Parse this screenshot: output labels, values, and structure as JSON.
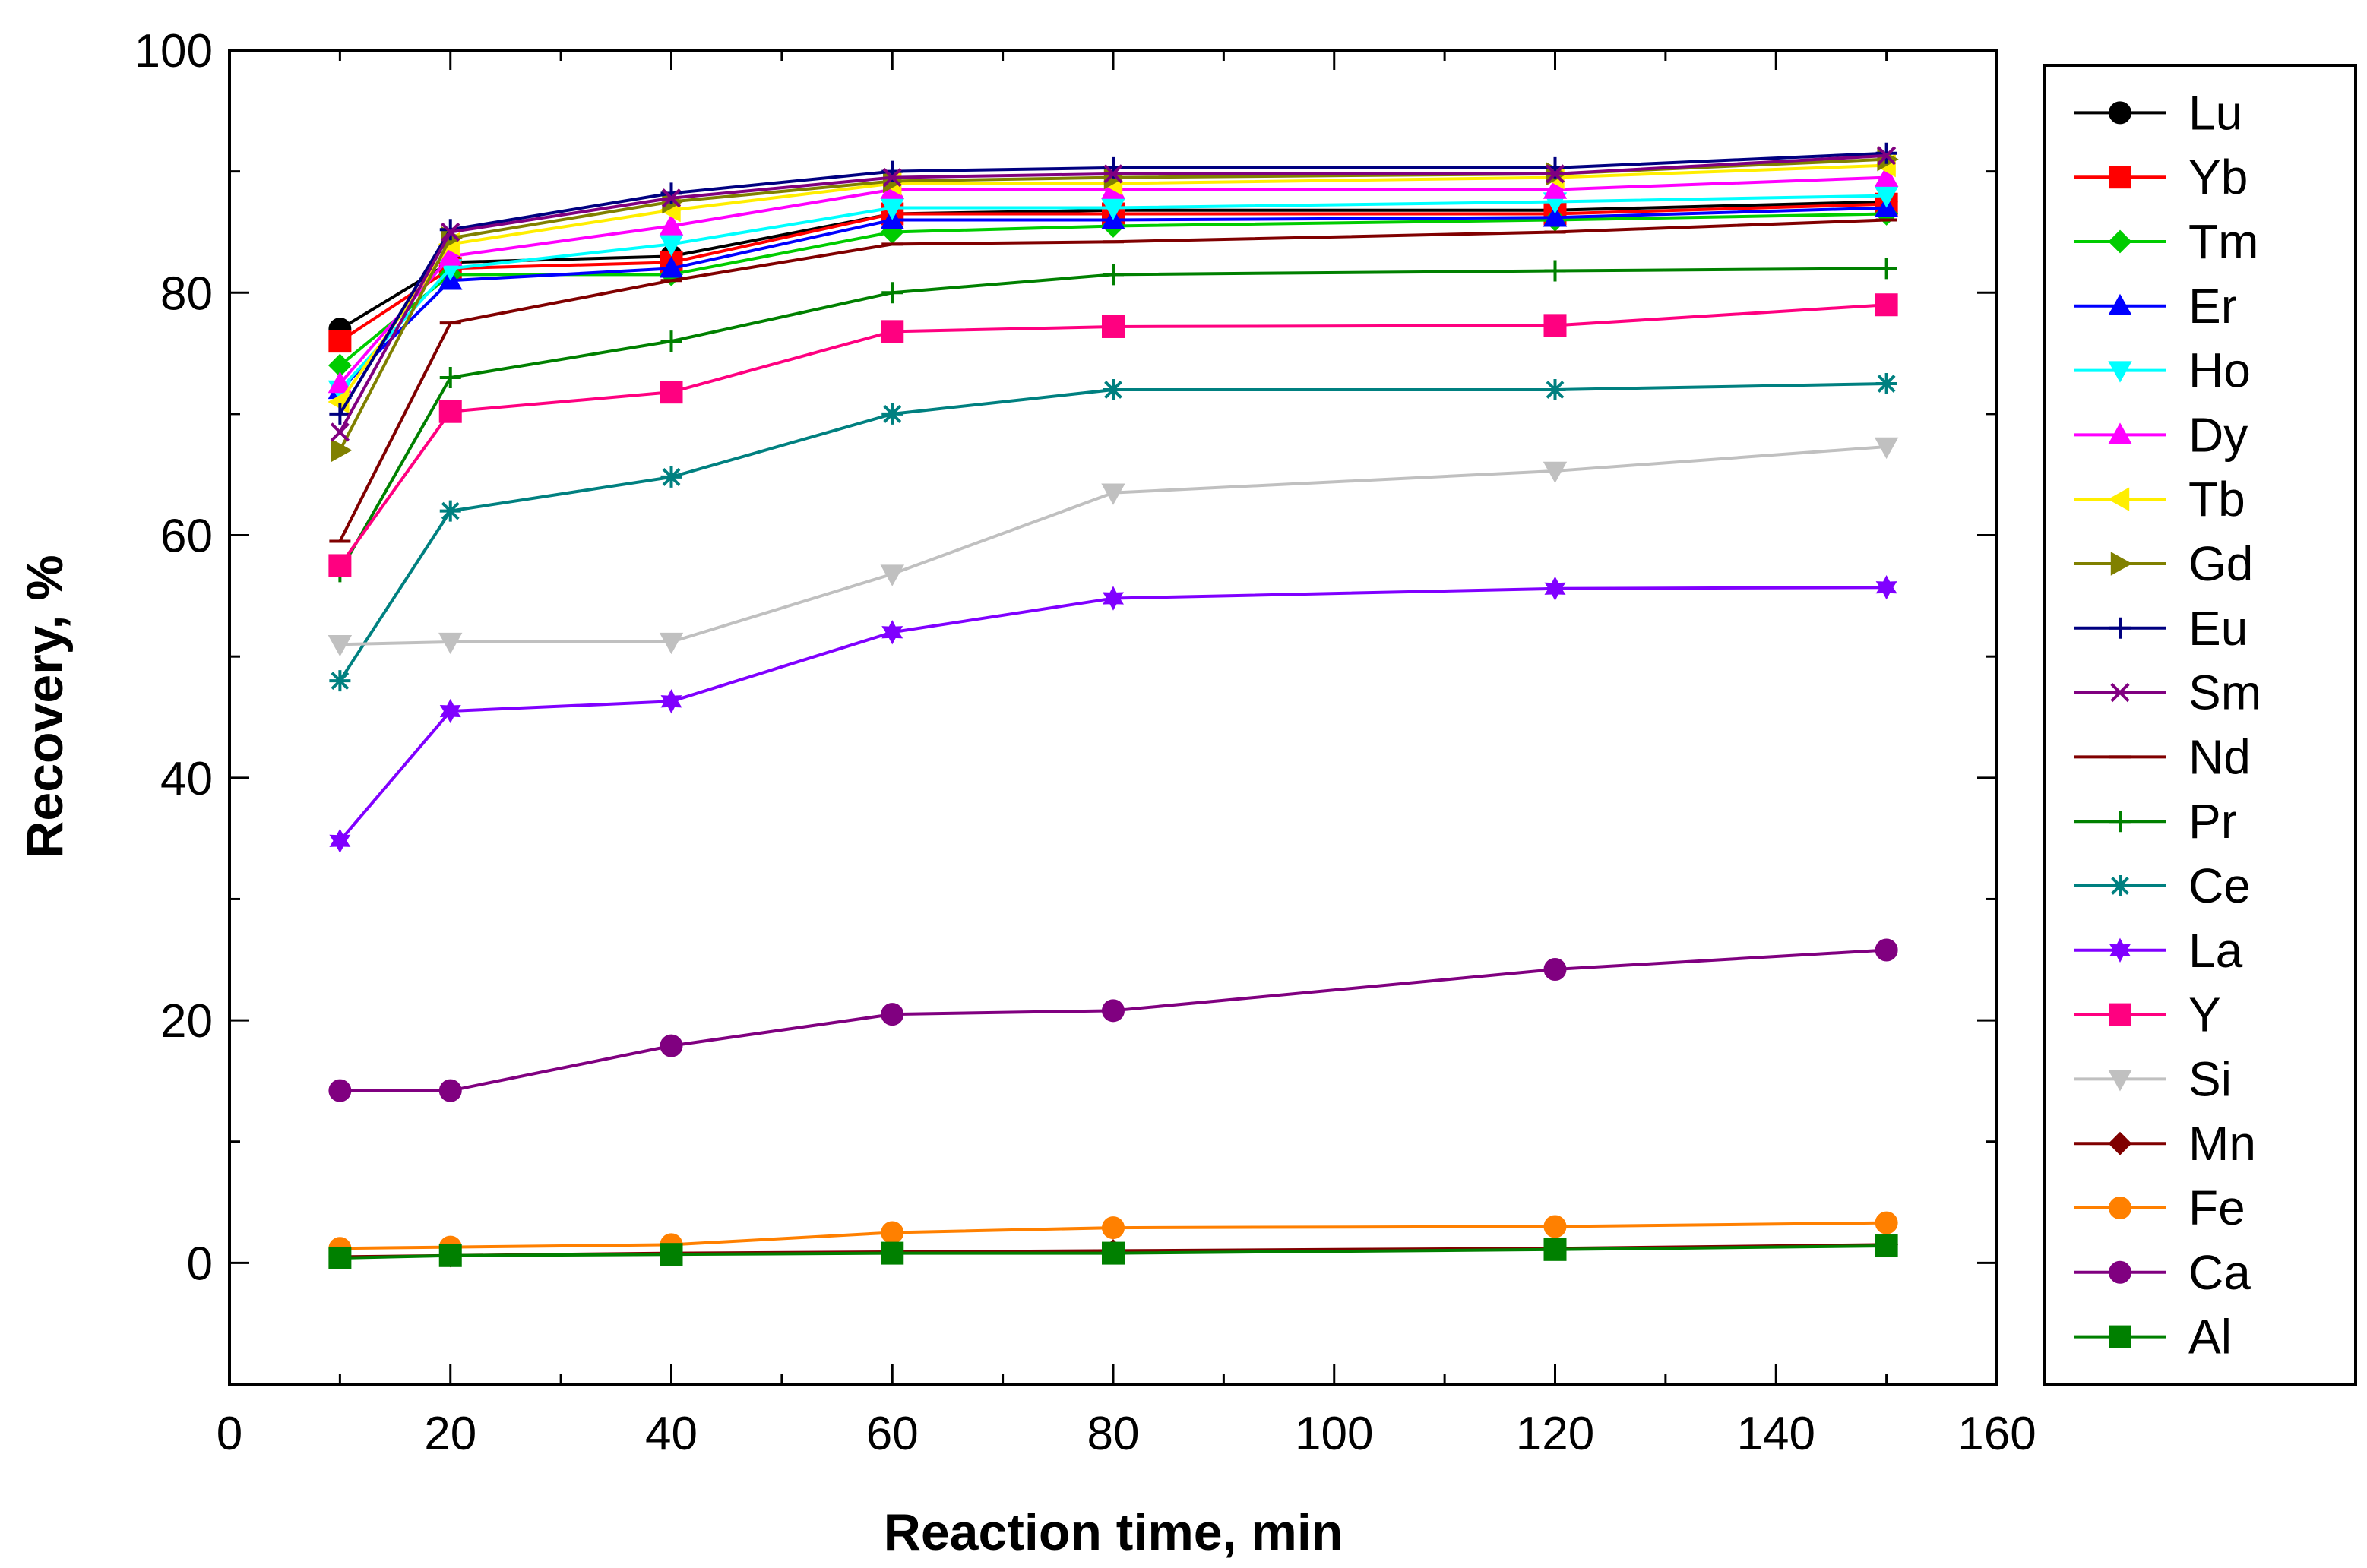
{
  "chart_data": {
    "type": "line",
    "title": "",
    "xlabel": "Reaction time, min",
    "ylabel": "Recovery, %",
    "xlim": [
      0,
      160
    ],
    "ylim": [
      -10,
      100
    ],
    "xticks": [
      0,
      20,
      40,
      60,
      80,
      100,
      120,
      140,
      160
    ],
    "yticks": [
      0,
      20,
      40,
      60,
      80,
      100
    ],
    "legend_position": "right-outside",
    "x": [
      10,
      20,
      40,
      60,
      80,
      120,
      150
    ],
    "series": [
      {
        "name": "Lu",
        "color": "#000000",
        "marker": "circle",
        "values": [
          77.0,
          82.5,
          83.0,
          86.5,
          86.8,
          86.8,
          87.5
        ]
      },
      {
        "name": "Yb",
        "color": "#ff0000",
        "marker": "square",
        "values": [
          76.0,
          82.0,
          82.5,
          86.5,
          86.5,
          86.5,
          87.3
        ]
      },
      {
        "name": "Tm",
        "color": "#00cc00",
        "marker": "diamond",
        "values": [
          74.0,
          81.5,
          81.5,
          85.0,
          85.5,
          86.0,
          86.5
        ]
      },
      {
        "name": "Er",
        "color": "#0000ff",
        "marker": "triangle-up",
        "values": [
          72.0,
          81.0,
          82.0,
          86.0,
          86.0,
          86.2,
          87.0
        ]
      },
      {
        "name": "Ho",
        "color": "#00ffff",
        "marker": "triangle-down",
        "values": [
          72.0,
          82.0,
          84.0,
          87.0,
          87.0,
          87.5,
          88.0
        ]
      },
      {
        "name": "Dy",
        "color": "#ff00ff",
        "marker": "triangle-up",
        "values": [
          72.5,
          83.0,
          85.5,
          88.5,
          88.5,
          88.5,
          89.5
        ]
      },
      {
        "name": "Tb",
        "color": "#ffee00",
        "marker": "triangle-left",
        "values": [
          71.0,
          84.0,
          86.8,
          89.0,
          89.0,
          89.5,
          90.5
        ]
      },
      {
        "name": "Gd",
        "color": "#808000",
        "marker": "triangle-right",
        "values": [
          67.0,
          84.5,
          87.5,
          89.2,
          89.5,
          89.8,
          91.0
        ]
      },
      {
        "name": "Eu",
        "color": "#000080",
        "marker": "plus",
        "values": [
          70.0,
          85.2,
          88.2,
          90.0,
          90.3,
          90.3,
          91.5
        ]
      },
      {
        "name": "Sm",
        "color": "#800080",
        "marker": "x",
        "values": [
          68.5,
          85.0,
          87.8,
          89.5,
          89.8,
          89.8,
          91.3
        ]
      },
      {
        "name": "Nd",
        "color": "#800000",
        "marker": "hbar",
        "values": [
          59.5,
          77.5,
          81.0,
          84.0,
          84.2,
          85.0,
          86.0
        ]
      },
      {
        "name": "Pr",
        "color": "#008000",
        "marker": "plus",
        "values": [
          57.0,
          73.0,
          76.0,
          80.0,
          81.5,
          81.8,
          82.0
        ]
      },
      {
        "name": "Ce",
        "color": "#008080",
        "marker": "asterisk",
        "values": [
          48.0,
          62.0,
          64.8,
          70.0,
          72.0,
          72.0,
          72.5
        ]
      },
      {
        "name": "La",
        "color": "#8000ff",
        "marker": "star",
        "values": [
          34.8,
          45.5,
          46.3,
          52.0,
          54.8,
          55.6,
          55.7
        ]
      },
      {
        "name": "Y",
        "color": "#ff0080",
        "marker": "square",
        "values": [
          57.5,
          70.2,
          71.8,
          76.8,
          77.2,
          77.3,
          79.0
        ]
      },
      {
        "name": "Si",
        "color": "#c0c0c0",
        "marker": "triangle-down",
        "values": [
          51.0,
          51.2,
          51.2,
          56.8,
          63.5,
          65.3,
          67.3
        ]
      },
      {
        "name": "Mn",
        "color": "#800000",
        "marker": "diamond",
        "values": [
          0.5,
          0.6,
          0.8,
          0.9,
          1.0,
          1.2,
          1.5
        ]
      },
      {
        "name": "Fe",
        "color": "#ff8000",
        "marker": "circle",
        "values": [
          1.2,
          1.3,
          1.5,
          2.5,
          2.9,
          3.0,
          3.3
        ]
      },
      {
        "name": "Ca",
        "color": "#800080",
        "marker": "circle",
        "values": [
          14.2,
          14.2,
          17.9,
          20.5,
          20.8,
          24.2,
          25.8
        ]
      },
      {
        "name": "Al",
        "color": "#008000",
        "marker": "square",
        "values": [
          0.4,
          0.6,
          0.7,
          0.8,
          0.8,
          1.1,
          1.4
        ]
      }
    ]
  }
}
